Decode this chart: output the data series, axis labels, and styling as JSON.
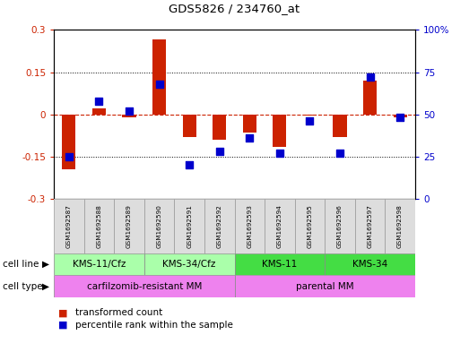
{
  "title": "GDS5826 / 234760_at",
  "samples": [
    "GSM1692587",
    "GSM1692588",
    "GSM1692589",
    "GSM1692590",
    "GSM1692591",
    "GSM1692592",
    "GSM1692593",
    "GSM1692594",
    "GSM1692595",
    "GSM1692596",
    "GSM1692597",
    "GSM1692598"
  ],
  "transformed_count": [
    -0.195,
    0.02,
    -0.01,
    0.265,
    -0.08,
    -0.09,
    -0.065,
    -0.115,
    -0.005,
    -0.08,
    0.12,
    -0.01
  ],
  "percentile_rank": [
    25,
    58,
    52,
    68,
    20,
    28,
    36,
    27,
    46,
    27,
    72,
    48
  ],
  "red_color": "#CC2200",
  "blue_color": "#0000CC",
  "ylim_left": [
    -0.3,
    0.3
  ],
  "ylim_right": [
    0,
    100
  ],
  "yticks_left": [
    -0.3,
    -0.15,
    0,
    0.15,
    0.3
  ],
  "yticks_right": [
    0,
    25,
    50,
    75,
    100
  ],
  "cell_line_groups": [
    {
      "label": "KMS-11/Cfz",
      "start": 0,
      "end": 2,
      "color": "#AAFFAA"
    },
    {
      "label": "KMS-34/Cfz",
      "start": 3,
      "end": 5,
      "color": "#AAFFAA"
    },
    {
      "label": "KMS-11",
      "start": 6,
      "end": 8,
      "color": "#44DD44"
    },
    {
      "label": "KMS-34",
      "start": 9,
      "end": 11,
      "color": "#44DD44"
    }
  ],
  "cell_type_groups": [
    {
      "label": "carfilzomib-resistant MM",
      "start": 0,
      "end": 5,
      "color": "#EE82EE"
    },
    {
      "label": "parental MM",
      "start": 6,
      "end": 11,
      "color": "#EE82EE"
    }
  ],
  "legend_red": "transformed count",
  "legend_blue": "percentile rank within the sample",
  "bar_width": 0.45,
  "blue_marker_size": 28
}
